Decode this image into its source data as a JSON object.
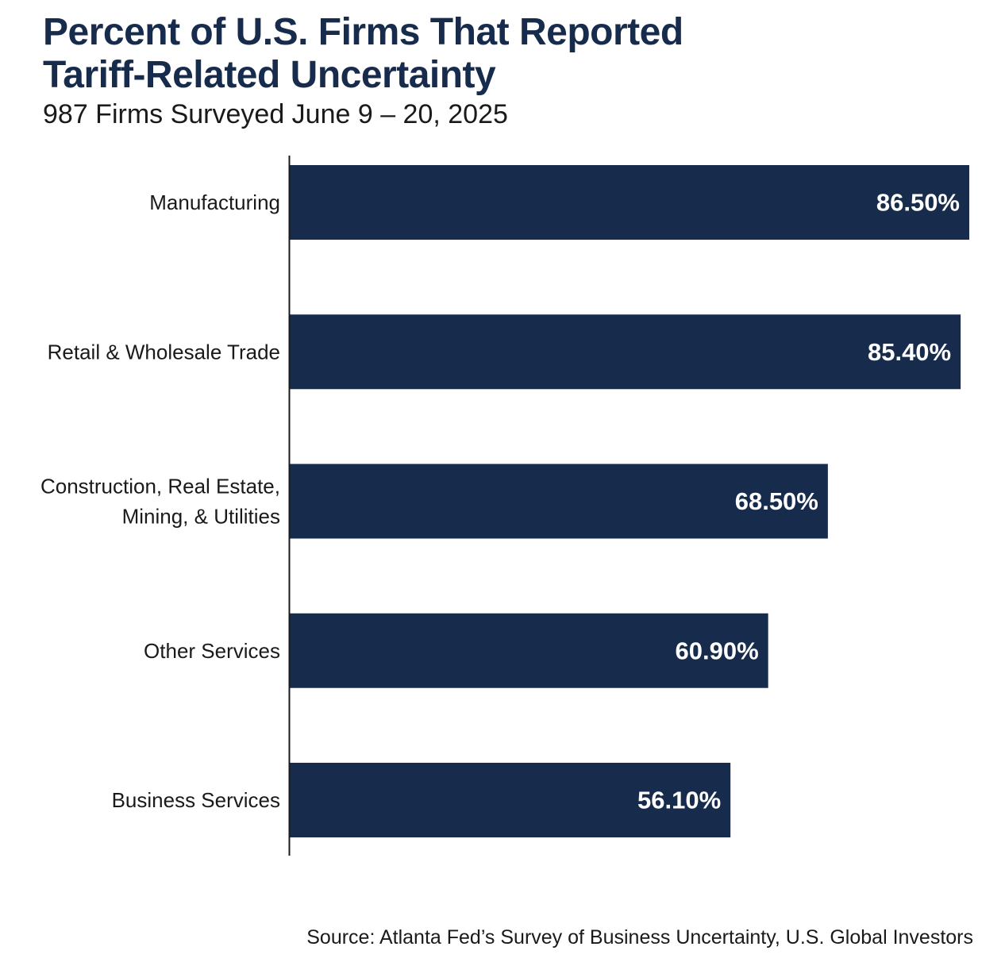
{
  "chart_data": {
    "type": "bar",
    "orientation": "horizontal",
    "title_lines": [
      "Percent of U.S. Firms That Reported",
      "Tariff-Related Uncertainty"
    ],
    "subtitle": "987 Firms Surveyed June 9 – 20, 2025",
    "categories": [
      [
        "Manufacturing"
      ],
      [
        "Retail & Wholesale Trade"
      ],
      [
        "Construction, Real Estate,",
        "Mining, & Utilities"
      ],
      [
        "Other Services"
      ],
      [
        "Business Services"
      ]
    ],
    "values": [
      86.5,
      85.4,
      68.5,
      60.9,
      56.1
    ],
    "value_labels": [
      "86.50%",
      "85.40%",
      "68.50%",
      "60.90%",
      "56.10%"
    ],
    "xlim": [
      0,
      86.5
    ],
    "grid": false,
    "legend": "none",
    "bar_color": "#172b4d",
    "label_color": "#ffffff",
    "source": "Source: Atlanta Fed’s Survey of Business Uncertainty, U.S. Global Investors"
  }
}
